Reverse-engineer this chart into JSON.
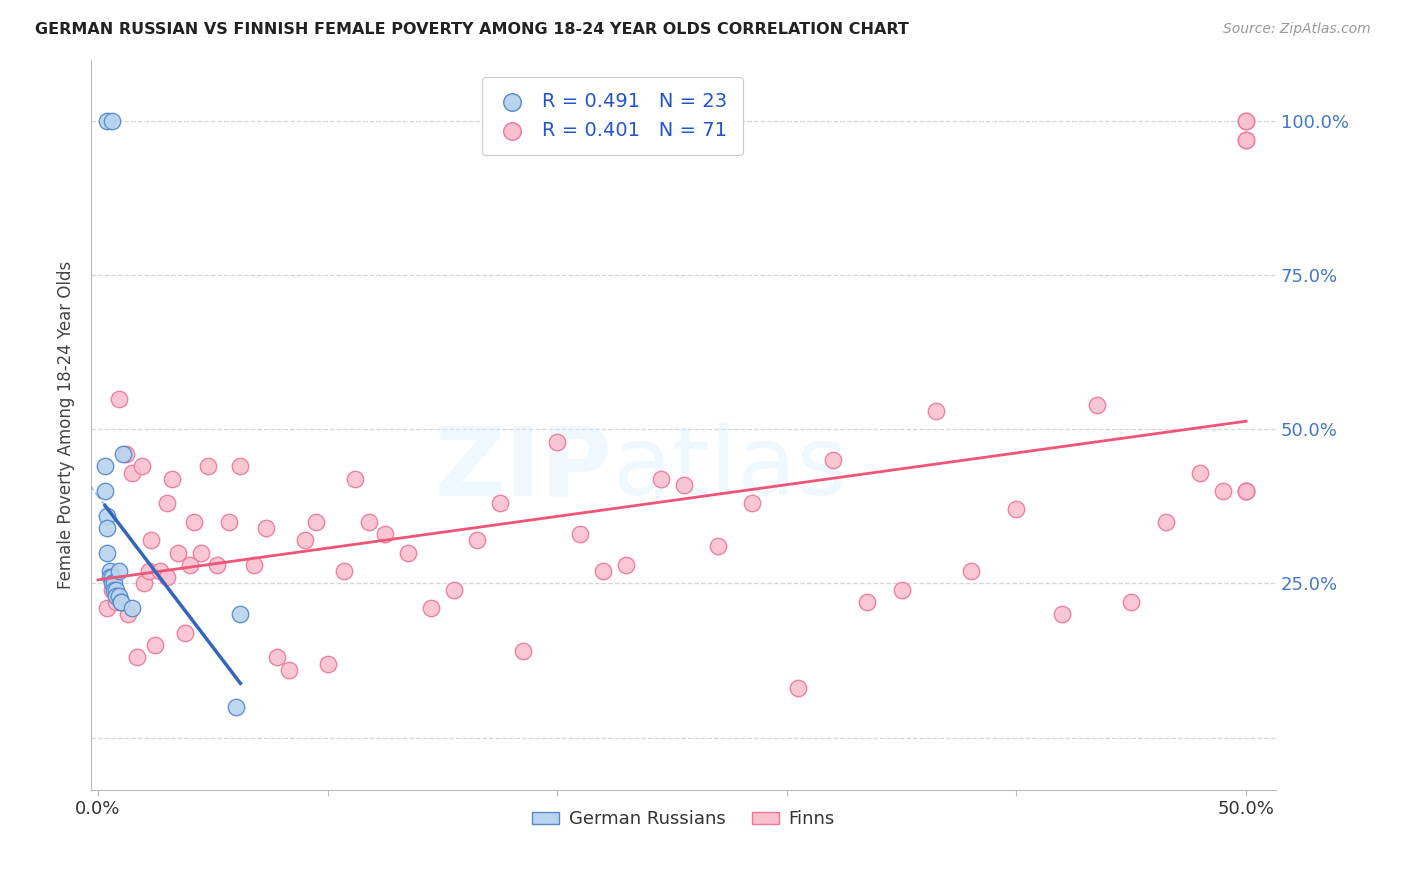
{
  "title": "GERMAN RUSSIAN VS FINNISH FEMALE POVERTY AMONG 18-24 YEAR OLDS CORRELATION CHART",
  "source": "Source: ZipAtlas.com",
  "ylabel": "Female Poverty Among 18-24 Year Olds",
  "xlim": [
    -0.003,
    0.513
  ],
  "ylim": [
    -0.085,
    1.1
  ],
  "xtick_pos": [
    0.0,
    0.1,
    0.2,
    0.3,
    0.4,
    0.5
  ],
  "xtick_labels": [
    "0.0%",
    "",
    "",
    "",
    "",
    "50.0%"
  ],
  "ytick_pos": [
    0.0,
    0.25,
    0.5,
    0.75,
    1.0
  ],
  "left_ytick_labels": [
    "",
    "",
    "",
    "",
    ""
  ],
  "right_ytick_labels": [
    "",
    "25.0%",
    "50.0%",
    "75.0%",
    "100.0%"
  ],
  "legend_r1": "R = 0.491",
  "legend_n1": "N = 23",
  "legend_r2": "R = 0.401",
  "legend_n2": "N = 71",
  "color_blue_fill": "#B8D4EE",
  "color_blue_edge": "#5588CC",
  "color_pink_fill": "#F9C0D0",
  "color_pink_edge": "#EE7799",
  "color_blue_line": "#3366BB",
  "color_pink_line": "#EE5577",
  "legend_label1": "German Russians",
  "legend_label2": "Finns",
  "gr_x": [
    0.004,
    0.006,
    0.003,
    0.003,
    0.004,
    0.004,
    0.004,
    0.005,
    0.005,
    0.006,
    0.006,
    0.007,
    0.007,
    0.008,
    0.008,
    0.009,
    0.009,
    0.01,
    0.01,
    0.011,
    0.015,
    0.06,
    0.062
  ],
  "gr_y": [
    1.0,
    1.0,
    0.44,
    0.4,
    0.36,
    0.34,
    0.3,
    0.27,
    0.26,
    0.26,
    0.25,
    0.25,
    0.24,
    0.24,
    0.23,
    0.23,
    0.27,
    0.22,
    0.22,
    0.46,
    0.21,
    0.05,
    0.2
  ],
  "finn_x": [
    0.004,
    0.006,
    0.008,
    0.009,
    0.012,
    0.013,
    0.015,
    0.017,
    0.019,
    0.02,
    0.022,
    0.023,
    0.025,
    0.027,
    0.03,
    0.03,
    0.032,
    0.035,
    0.038,
    0.04,
    0.042,
    0.045,
    0.048,
    0.052,
    0.057,
    0.062,
    0.068,
    0.073,
    0.078,
    0.083,
    0.09,
    0.095,
    0.1,
    0.107,
    0.112,
    0.118,
    0.125,
    0.135,
    0.145,
    0.155,
    0.165,
    0.175,
    0.185,
    0.2,
    0.21,
    0.22,
    0.23,
    0.245,
    0.255,
    0.27,
    0.285,
    0.305,
    0.32,
    0.335,
    0.35,
    0.365,
    0.38,
    0.4,
    0.42,
    0.435,
    0.45,
    0.465,
    0.48,
    0.49,
    0.5,
    0.5,
    0.5,
    0.5,
    0.5,
    0.5,
    0.5
  ],
  "finn_y": [
    0.21,
    0.24,
    0.22,
    0.55,
    0.46,
    0.2,
    0.43,
    0.13,
    0.44,
    0.25,
    0.27,
    0.32,
    0.15,
    0.27,
    0.26,
    0.38,
    0.42,
    0.3,
    0.17,
    0.28,
    0.35,
    0.3,
    0.44,
    0.28,
    0.35,
    0.44,
    0.28,
    0.34,
    0.13,
    0.11,
    0.32,
    0.35,
    0.12,
    0.27,
    0.42,
    0.35,
    0.33,
    0.3,
    0.21,
    0.24,
    0.32,
    0.38,
    0.14,
    0.48,
    0.33,
    0.27,
    0.28,
    0.42,
    0.41,
    0.31,
    0.38,
    0.08,
    0.45,
    0.22,
    0.24,
    0.53,
    0.27,
    0.37,
    0.2,
    0.54,
    0.22,
    0.35,
    0.43,
    0.4,
    1.0,
    1.0,
    0.97,
    0.97,
    0.4,
    0.4,
    0.4
  ],
  "grid_color": "#CCCCCC",
  "spine_color": "#BBBBBB",
  "marker_size": 140
}
